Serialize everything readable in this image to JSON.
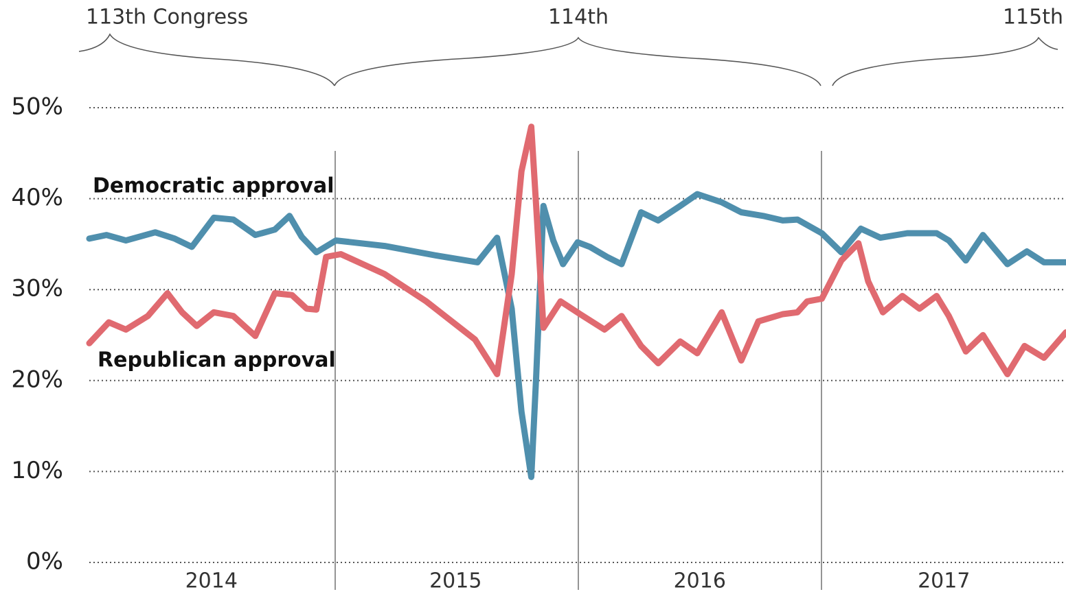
{
  "chart_data": {
    "type": "line",
    "annotations": [
      "113th Congress",
      "114th",
      "115th"
    ],
    "categories": [
      "2014",
      "2015",
      "2016",
      "2017"
    ],
    "xlim": [
      2014,
      2018
    ],
    "ylim": [
      0,
      50
    ],
    "yticks": [
      {
        "value": 0,
        "label": "0%"
      },
      {
        "value": 10,
        "label": "10%"
      },
      {
        "value": 20,
        "label": "20%"
      },
      {
        "value": 30,
        "label": "30%"
      },
      {
        "value": 40,
        "label": "40%"
      },
      {
        "value": 50,
        "label": "50%"
      }
    ],
    "grid": true,
    "series": [
      {
        "name": "Democratic approval",
        "color": "#4f8fad",
        "x": [
          2014.0,
          2014.07,
          2014.15,
          2014.27,
          2014.35,
          2014.42,
          2014.51,
          2014.59,
          2014.68,
          2014.76,
          2014.82,
          2014.87,
          2014.93,
          2015.01,
          2015.21,
          2015.43,
          2015.59,
          2015.67,
          2015.73,
          2015.77,
          2015.81,
          2015.83,
          2015.86,
          2015.9,
          2015.94,
          2016.0,
          2016.05,
          2016.12,
          2016.18,
          2016.26,
          2016.33,
          2016.42,
          2016.49,
          2016.59,
          2016.67,
          2016.76,
          2016.84,
          2016.9,
          2017.0,
          2017.08,
          2017.16,
          2017.24,
          2017.35,
          2017.47,
          2017.52,
          2017.59,
          2017.66,
          2017.76,
          2017.84,
          2017.91,
          2018.0
        ],
        "values": [
          35.6,
          36.0,
          35.4,
          36.3,
          35.6,
          34.7,
          37.9,
          37.7,
          36.0,
          36.6,
          38.1,
          35.8,
          34.1,
          35.4,
          34.8,
          33.7,
          33.0,
          35.7,
          27.9,
          16.6,
          9.4,
          20.4,
          39.2,
          35.4,
          32.8,
          35.2,
          34.7,
          33.6,
          32.8,
          38.5,
          37.6,
          39.2,
          40.5,
          39.6,
          38.5,
          38.1,
          37.6,
          37.7,
          36.2,
          34.1,
          36.7,
          35.7,
          36.2,
          36.2,
          35.4,
          33.2,
          36.0,
          32.8,
          34.2,
          33.0,
          33.0
        ]
      },
      {
        "name": "Republican approval",
        "color": "#e06a70",
        "x": [
          2014.0,
          2014.08,
          2014.15,
          2014.24,
          2014.32,
          2014.38,
          2014.44,
          2014.51,
          2014.59,
          2014.68,
          2014.76,
          2014.83,
          2014.89,
          2014.93,
          2014.97,
          2015.03,
          2015.21,
          2015.38,
          2015.58,
          2015.67,
          2015.73,
          2015.77,
          2015.81,
          2015.83,
          2015.86,
          2015.93,
          2016.01,
          2016.11,
          2016.18,
          2016.26,
          2016.33,
          2016.42,
          2016.49,
          2016.59,
          2016.67,
          2016.74,
          2016.84,
          2016.9,
          2016.94,
          2017.0,
          2017.08,
          2017.15,
          2017.19,
          2017.25,
          2017.33,
          2017.4,
          2017.47,
          2017.52,
          2017.59,
          2017.66,
          2017.76,
          2017.83,
          2017.91,
          2018.0
        ],
        "values": [
          24.1,
          26.4,
          25.6,
          27.1,
          29.6,
          27.5,
          26.0,
          27.5,
          27.1,
          24.9,
          29.6,
          29.4,
          27.9,
          27.8,
          33.6,
          33.9,
          31.7,
          28.7,
          24.5,
          20.7,
          31.7,
          43.0,
          47.9,
          39.2,
          25.8,
          28.7,
          27.3,
          25.6,
          27.1,
          23.8,
          21.9,
          24.3,
          23.0,
          27.5,
          22.2,
          26.5,
          27.3,
          27.5,
          28.7,
          29.0,
          33.2,
          35.1,
          30.9,
          27.5,
          29.3,
          27.9,
          29.3,
          27.1,
          23.2,
          25.0,
          20.7,
          23.8,
          22.5,
          25.3
        ]
      }
    ]
  }
}
